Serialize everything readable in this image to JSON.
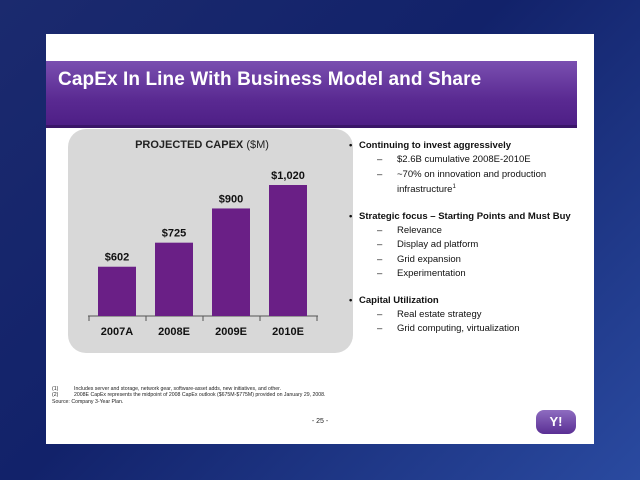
{
  "slide": {
    "title": "CapEx In Line With Business Model and Share",
    "page_number": "- 25 -",
    "logo_text": "Y!"
  },
  "chart_data": {
    "type": "bar",
    "title": "PROJECTED CAPEX",
    "title_unit": "($M)",
    "categories": [
      "2007A",
      "2008E",
      "2009E",
      "2010E"
    ],
    "values": [
      602,
      725,
      900,
      1020
    ],
    "data_labels": [
      "$602",
      "$725",
      "$900",
      "$1,020"
    ],
    "ylim": [
      350,
      1020
    ],
    "bar_color": "#6a1f86",
    "grid": false,
    "legend": "none"
  },
  "bullets": [
    {
      "text": "Continuing to invest aggressively",
      "subs": [
        {
          "text": "$2.6B cumulative 2008E-2010E",
          "sup": ""
        },
        {
          "text": "~70% on innovation and production infrastructure",
          "sup": "1"
        }
      ]
    },
    {
      "text": "Strategic focus – Starting Points and Must Buy",
      "subs": [
        {
          "text": "Relevance",
          "sup": ""
        },
        {
          "text": "Display ad platform",
          "sup": ""
        },
        {
          "text": "Grid expansion",
          "sup": ""
        },
        {
          "text": "Experimentation",
          "sup": ""
        }
      ]
    },
    {
      "text": "Capital Utilization",
      "subs": [
        {
          "text": "Real estate strategy",
          "sup": ""
        },
        {
          "text": "Grid computing, virtualization",
          "sup": ""
        }
      ]
    }
  ],
  "footnotes": [
    {
      "num": "(1)",
      "text": "Includes server and storage, network gear, software-asset adds, new initiatives, and other."
    },
    {
      "num": "(2)",
      "text": "2008E CapEx represents the midpoint of 2008 CapEx outlook ($675M-$775M) provided on January 29, 2008."
    },
    {
      "num": "",
      "text": "Source: Company 3-Year Plan."
    }
  ],
  "colors": {
    "title_bar": "#5a2a92",
    "bar": "#6a1f86",
    "chart_panel": "#d8d8d8"
  }
}
